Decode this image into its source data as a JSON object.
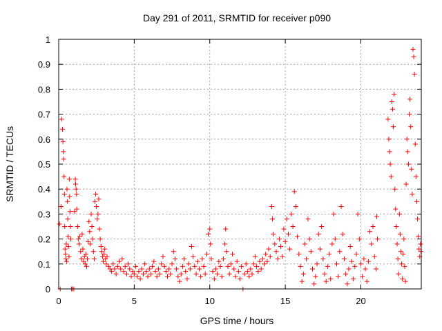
{
  "chart_data": {
    "type": "scatter",
    "title": "Day 291 of 2011, SRMTID for receiver p090",
    "xlabel": "GPS time / hours",
    "ylabel": "SRMTID / TECUs",
    "xlim": [
      0,
      24
    ],
    "ylim": [
      0,
      1
    ],
    "x_ticks": [
      0,
      5,
      10,
      15,
      20
    ],
    "x_tick_labels": [
      "0",
      "5",
      "10",
      "15",
      "20"
    ],
    "y_ticks": [
      0,
      0.1,
      0.2,
      0.3,
      0.4,
      0.5,
      0.6,
      0.7,
      0.8,
      0.9,
      1
    ],
    "y_tick_labels": [
      "0",
      "0.1",
      "0.2",
      "0.3",
      "0.4",
      "0.5",
      "0.6",
      "0.7",
      "0.8",
      "0.9",
      "1"
    ],
    "grid": true,
    "marker": "+",
    "color": "#ff0000",
    "series": [
      {
        "name": "SRMTID",
        "points": [
          [
            0.05,
            0.26
          ],
          [
            0.1,
            0.0
          ],
          [
            0.15,
            0.33
          ],
          [
            0.2,
            0.68
          ],
          [
            0.25,
            0.64
          ],
          [
            0.28,
            0.59
          ],
          [
            0.3,
            0.55
          ],
          [
            0.32,
            0.52
          ],
          [
            0.35,
            0.45
          ],
          [
            0.38,
            0.38
          ],
          [
            0.4,
            0.25
          ],
          [
            0.42,
            0.16
          ],
          [
            0.45,
            0.14
          ],
          [
            0.48,
            0.12
          ],
          [
            0.5,
            0.18
          ],
          [
            0.52,
            0.11
          ],
          [
            0.55,
            0.4
          ],
          [
            0.58,
            0.35
          ],
          [
            0.6,
            0.28
          ],
          [
            0.62,
            0.21
          ],
          [
            0.65,
            0.17
          ],
          [
            0.68,
            0.13
          ],
          [
            0.7,
            0.44
          ],
          [
            0.72,
            0.37
          ],
          [
            0.75,
            0.31
          ],
          [
            0.78,
            0.25
          ],
          [
            0.8,
            0.2
          ],
          [
            0.85,
            0.0
          ],
          [
            0.9,
            0.0
          ],
          [
            1.0,
            0.0
          ],
          [
            1.05,
            0.31
          ],
          [
            1.1,
            0.44
          ],
          [
            1.12,
            0.42
          ],
          [
            1.15,
            0.4
          ],
          [
            1.18,
            0.38
          ],
          [
            1.2,
            0.32
          ],
          [
            1.25,
            0.25
          ],
          [
            1.3,
            0.2
          ],
          [
            1.35,
            0.18
          ],
          [
            1.4,
            0.21
          ],
          [
            1.45,
            0.15
          ],
          [
            1.5,
            0.12
          ],
          [
            1.55,
            0.22
          ],
          [
            1.6,
            0.16
          ],
          [
            1.65,
            0.11
          ],
          [
            1.7,
            0.13
          ],
          [
            1.75,
            0.1
          ],
          [
            1.8,
            0.14
          ],
          [
            1.85,
            0.09
          ],
          [
            1.9,
            0.12
          ],
          [
            1.95,
            0.19
          ],
          [
            2.0,
            0.27
          ],
          [
            2.05,
            0.23
          ],
          [
            2.1,
            0.18
          ],
          [
            2.15,
            0.3
          ],
          [
            2.2,
            0.25
          ],
          [
            2.25,
            0.2
          ],
          [
            2.3,
            0.15
          ],
          [
            2.35,
            0.12
          ],
          [
            2.4,
            0.35
          ],
          [
            2.45,
            0.38
          ],
          [
            2.5,
            0.33
          ],
          [
            2.55,
            0.28
          ],
          [
            2.6,
            0.3
          ],
          [
            2.65,
            0.36
          ],
          [
            2.7,
            0.24
          ],
          [
            2.75,
            0.2
          ],
          [
            2.8,
            0.17
          ],
          [
            2.85,
            0.15
          ],
          [
            2.9,
            0.13
          ],
          [
            2.95,
            0.11
          ],
          [
            3.0,
            0.14
          ],
          [
            3.05,
            0.16
          ],
          [
            3.1,
            0.12
          ],
          [
            3.15,
            0.1
          ],
          [
            3.2,
            0.13
          ],
          [
            3.3,
            0.09
          ],
          [
            3.4,
            0.08
          ],
          [
            3.5,
            0.07
          ],
          [
            3.6,
            0.1
          ],
          [
            3.7,
            0.08
          ],
          [
            3.8,
            0.06
          ],
          [
            3.9,
            0.09
          ],
          [
            4.0,
            0.11
          ],
          [
            4.1,
            0.08
          ],
          [
            4.2,
            0.12
          ],
          [
            4.3,
            0.07
          ],
          [
            4.4,
            0.09
          ],
          [
            4.5,
            0.06
          ],
          [
            4.6,
            0.1
          ],
          [
            4.7,
            0.08
          ],
          [
            4.8,
            0.05
          ],
          [
            4.9,
            0.07
          ],
          [
            5.0,
            0.06
          ],
          [
            5.1,
            0.09
          ],
          [
            5.2,
            0.05
          ],
          [
            5.3,
            0.07
          ],
          [
            5.4,
            0.04
          ],
          [
            5.5,
            0.08
          ],
          [
            5.6,
            0.06
          ],
          [
            5.7,
            0.1
          ],
          [
            5.8,
            0.07
          ],
          [
            5.9,
            0.05
          ],
          [
            6.0,
            0.08
          ],
          [
            6.1,
            0.06
          ],
          [
            6.2,
            0.09
          ],
          [
            6.3,
            0.11
          ],
          [
            6.4,
            0.07
          ],
          [
            6.5,
            0.05
          ],
          [
            6.6,
            0.08
          ],
          [
            6.7,
            0.06
          ],
          [
            6.8,
            0.1
          ],
          [
            6.9,
            0.13
          ],
          [
            7.0,
            0.09
          ],
          [
            7.1,
            0.07
          ],
          [
            7.2,
            0.05
          ],
          [
            7.3,
            0.08
          ],
          [
            7.4,
            0.06
          ],
          [
            7.5,
            0.1
          ],
          [
            7.6,
            0.15
          ],
          [
            7.7,
            0.12
          ],
          [
            7.8,
            0.08
          ],
          [
            7.9,
            0.05
          ],
          [
            8.0,
            0.03
          ],
          [
            8.1,
            0.06
          ],
          [
            8.2,
            0.09
          ],
          [
            8.3,
            0.12
          ],
          [
            8.4,
            0.07
          ],
          [
            8.5,
            0.04
          ],
          [
            8.6,
            0.1
          ],
          [
            8.7,
            0.08
          ],
          [
            8.8,
            0.17
          ],
          [
            8.9,
            0.13
          ],
          [
            9.0,
            0.09
          ],
          [
            9.1,
            0.06
          ],
          [
            9.2,
            0.11
          ],
          [
            9.3,
            0.08
          ],
          [
            9.4,
            0.05
          ],
          [
            9.5,
            0.12
          ],
          [
            9.6,
            0.09
          ],
          [
            9.7,
            0.06
          ],
          [
            9.8,
            0.14
          ],
          [
            9.9,
            0.22
          ],
          [
            10.0,
            0.24
          ],
          [
            10.05,
            0.18
          ],
          [
            10.1,
            0.12
          ],
          [
            10.2,
            0.07
          ],
          [
            10.3,
            0.04
          ],
          [
            10.4,
            0.08
          ],
          [
            10.5,
            0.06
          ],
          [
            10.6,
            0.11
          ],
          [
            10.7,
            0.09
          ],
          [
            10.8,
            0.05
          ],
          [
            10.9,
            0.12
          ],
          [
            11.0,
            0.18
          ],
          [
            11.05,
            0.24
          ],
          [
            11.1,
            0.15
          ],
          [
            11.2,
            0.09
          ],
          [
            11.3,
            0.06
          ],
          [
            11.4,
            0.1
          ],
          [
            11.5,
            0.14
          ],
          [
            11.6,
            0.08
          ],
          [
            11.7,
            0.05
          ],
          [
            11.8,
            0.11
          ],
          [
            11.9,
            0.07
          ],
          [
            12.0,
            0.04
          ],
          [
            12.1,
            0.09
          ],
          [
            12.2,
            0.0
          ],
          [
            12.3,
            0.06
          ],
          [
            12.4,
            0.1
          ],
          [
            12.5,
            0.07
          ],
          [
            12.6,
            0.05
          ],
          [
            12.7,
            0.08
          ],
          [
            12.8,
            0.06
          ],
          [
            12.9,
            0.1
          ],
          [
            13.0,
            0.13
          ],
          [
            13.1,
            0.09
          ],
          [
            13.2,
            0.07
          ],
          [
            13.3,
            0.11
          ],
          [
            13.4,
            0.08
          ],
          [
            13.5,
            0.12
          ],
          [
            13.6,
            0.1
          ],
          [
            13.7,
            0.14
          ],
          [
            13.8,
            0.11
          ],
          [
            13.9,
            0.16
          ],
          [
            14.0,
            0.13
          ],
          [
            14.1,
            0.33
          ],
          [
            14.15,
            0.28
          ],
          [
            14.2,
            0.22
          ],
          [
            14.3,
            0.18
          ],
          [
            14.4,
            0.15
          ],
          [
            14.5,
            0.12
          ],
          [
            14.6,
            0.2
          ],
          [
            14.7,
            0.17
          ],
          [
            14.8,
            0.13
          ],
          [
            14.9,
            0.24
          ],
          [
            15.0,
            0.19
          ],
          [
            15.1,
            0.28
          ],
          [
            15.2,
            0.22
          ],
          [
            15.3,
            0.16
          ],
          [
            15.4,
            0.3
          ],
          [
            15.5,
            0.25
          ],
          [
            15.6,
            0.39
          ],
          [
            15.7,
            0.33
          ],
          [
            15.8,
            0.21
          ],
          [
            15.9,
            0.14
          ],
          [
            16.0,
            0.09
          ],
          [
            16.1,
            0.03
          ],
          [
            16.2,
            0.06
          ],
          [
            16.3,
            0.18
          ],
          [
            16.4,
            0.12
          ],
          [
            16.5,
            0.28
          ],
          [
            16.6,
            0.2
          ],
          [
            16.7,
            0.15
          ],
          [
            16.8,
            0.08
          ],
          [
            16.9,
            0.02
          ],
          [
            17.0,
            0.05
          ],
          [
            17.1,
            0.1
          ],
          [
            17.2,
            0.22
          ],
          [
            17.3,
            0.16
          ],
          [
            17.4,
            0.25
          ],
          [
            17.5,
            0.12
          ],
          [
            17.6,
            0.06
          ],
          [
            17.7,
            0.03
          ],
          [
            17.8,
            0.09
          ],
          [
            17.9,
            0.14
          ],
          [
            18.0,
            0.04
          ],
          [
            18.1,
            0.18
          ],
          [
            18.2,
            0.3
          ],
          [
            18.3,
            0.2
          ],
          [
            18.4,
            0.1
          ],
          [
            18.5,
            0.05
          ],
          [
            18.6,
            0.15
          ],
          [
            18.7,
            0.33
          ],
          [
            18.8,
            0.22
          ],
          [
            18.9,
            0.12
          ],
          [
            19.0,
            0.06
          ],
          [
            19.1,
            0.02
          ],
          [
            19.2,
            0.08
          ],
          [
            19.3,
            0.17
          ],
          [
            19.4,
            0.11
          ],
          [
            19.5,
            0.04
          ],
          [
            19.6,
            0.09
          ],
          [
            19.7,
            0.14
          ],
          [
            19.8,
            0.3
          ],
          [
            19.9,
            0.2
          ],
          [
            20.0,
            0.1
          ],
          [
            20.1,
            0.05
          ],
          [
            20.2,
            0.12
          ],
          [
            20.3,
            0.08
          ],
          [
            20.4,
            0.03
          ],
          [
            20.5,
            0.11
          ],
          [
            20.6,
            0.23
          ],
          [
            20.7,
            0.18
          ],
          [
            20.8,
            0.25
          ],
          [
            20.9,
            0.13
          ],
          [
            21.0,
            0.08
          ],
          [
            21.05,
            0.29
          ],
          [
            21.1,
            0.2
          ],
          [
            21.8,
            0.68
          ],
          [
            21.85,
            0.6
          ],
          [
            21.9,
            0.55
          ],
          [
            21.95,
            0.5
          ],
          [
            22.0,
            0.45
          ],
          [
            22.05,
            0.75
          ],
          [
            22.1,
            0.72
          ],
          [
            22.15,
            0.65
          ],
          [
            22.2,
            0.78
          ],
          [
            22.25,
            0.4
          ],
          [
            22.3,
            0.32
          ],
          [
            22.35,
            0.25
          ],
          [
            22.4,
            0.18
          ],
          [
            22.45,
            0.12
          ],
          [
            22.5,
            0.06
          ],
          [
            22.55,
            0.3
          ],
          [
            22.6,
            0.22
          ],
          [
            22.65,
            0.15
          ],
          [
            22.7,
            0.1
          ],
          [
            22.75,
            0.04
          ],
          [
            22.8,
            0.14
          ],
          [
            22.85,
            0.2
          ],
          [
            22.9,
            0.09
          ],
          [
            22.95,
            0.03
          ],
          [
            23.0,
            0.42
          ],
          [
            23.05,
            0.6
          ],
          [
            23.1,
            0.55
          ],
          [
            23.15,
            0.5
          ],
          [
            23.2,
            0.7
          ],
          [
            23.25,
            0.76
          ],
          [
            23.3,
            0.65
          ],
          [
            23.35,
            0.48
          ],
          [
            23.4,
            0.38
          ],
          [
            23.45,
            0.96
          ],
          [
            23.5,
            0.93
          ],
          [
            23.55,
            0.86
          ],
          [
            23.6,
            0.58
          ],
          [
            23.65,
            0.45
          ],
          [
            23.7,
            0.35
          ],
          [
            23.75,
            0.28
          ],
          [
            23.8,
            0.21
          ],
          [
            23.85,
            0.16
          ],
          [
            23.9,
            0.13
          ],
          [
            23.95,
            0.18
          ],
          [
            23.98,
            0.15
          ]
        ]
      }
    ]
  }
}
